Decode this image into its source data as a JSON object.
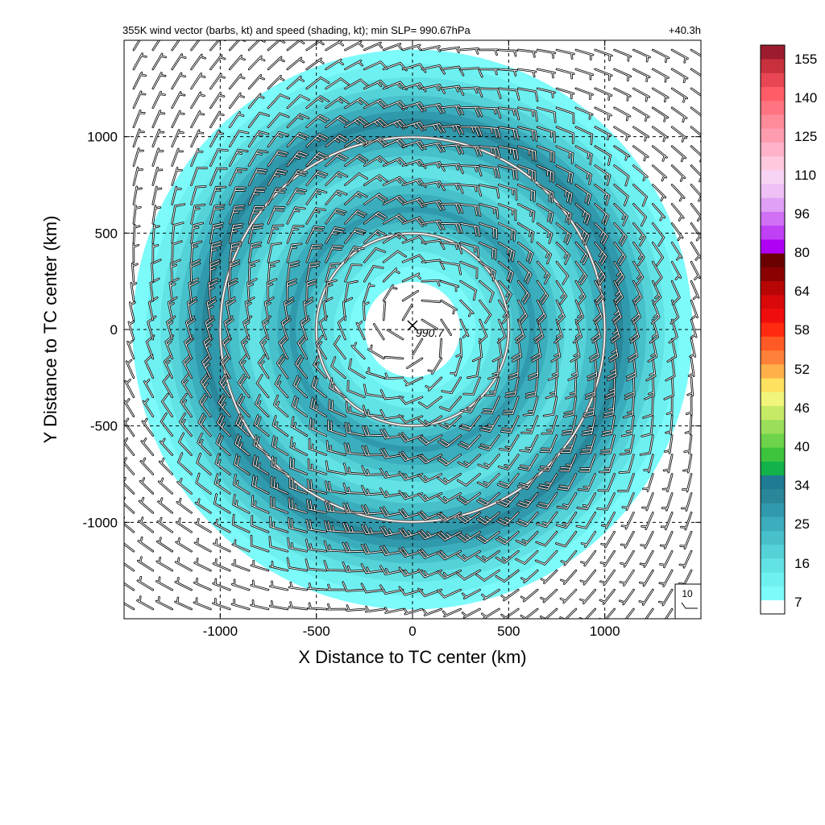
{
  "chart_data": {
    "type": "heatmap",
    "title": "355K wind vector (barbs, kt) and speed (shading, kt); min SLP= 990.67hPa",
    "forecast_time": "+40.3h",
    "xlabel": "X Distance to TC center (km)",
    "ylabel": "Y Distance to TC center (km)",
    "xlim": [
      -1500,
      1500
    ],
    "ylim": [
      -1500,
      1500
    ],
    "xticks": [
      -1000,
      -500,
      0,
      500,
      1000
    ],
    "yticks": [
      -1000,
      -500,
      0,
      500,
      1000
    ],
    "xtick_labels": [
      "-1000",
      "-500",
      "0",
      "500",
      "1000"
    ],
    "ytick_labels": [
      "-1000",
      "-500",
      "0",
      "500",
      "1000"
    ],
    "grid": "dashed",
    "center_marker": {
      "x": 0,
      "y": 0,
      "label": "990.7"
    },
    "range_rings_km": [
      500,
      1000
    ],
    "reference_vector": {
      "label": "10",
      "unit": "kt"
    },
    "colorbar": {
      "labels": [
        "155",
        "140",
        "125",
        "110",
        "96",
        "80",
        "64",
        "58",
        "52",
        "46",
        "40",
        "34",
        "25",
        "16",
        "7"
      ],
      "levels": [
        7,
        10,
        13,
        16,
        19,
        22,
        25,
        28,
        31,
        34,
        37,
        40,
        43,
        46,
        49,
        52,
        55,
        58,
        61,
        64,
        68,
        72,
        76,
        80,
        84,
        88,
        92,
        96,
        101,
        105,
        110,
        115,
        120,
        125,
        130,
        135,
        140,
        145,
        150,
        155,
        160
      ],
      "colors": [
        "#ffffff",
        "#7dfafa",
        "#6ff0f0",
        "#62e2e4",
        "#55d2d8",
        "#47c0ca",
        "#3badbc",
        "#3199ac",
        "#2a8699",
        "#1f7a93",
        "#12b34a",
        "#3cc43c",
        "#6cd34a",
        "#9ade5a",
        "#c6ea66",
        "#f1f57a",
        "#ffe160",
        "#ffb04a",
        "#ff8038",
        "#ff5a26",
        "#ff2a10",
        "#f00d0d",
        "#d90909",
        "#b80606",
        "#8b0000",
        "#6a0000",
        "#b000f5",
        "#c040f5",
        "#d070f5",
        "#e0a0f5",
        "#eec0f5",
        "#f7d4f3",
        "#ffc8de",
        "#ffb2c8",
        "#ff9caf",
        "#ff8a99",
        "#ff7480",
        "#ff5c68",
        "#e84654",
        "#c8303e",
        "#9c1c2e"
      ]
    },
    "wind_speed_field": {
      "units": "kt",
      "description_rings": [
        {
          "r_km": 0,
          "speed": 3
        },
        {
          "r_km": 200,
          "speed": 5
        },
        {
          "r_km": 330,
          "speed": 10
        },
        {
          "r_km": 480,
          "speed": 16
        },
        {
          "r_km": 620,
          "speed": 26
        },
        {
          "r_km": 720,
          "speed": 21
        },
        {
          "r_km": 820,
          "speed": 14
        },
        {
          "r_km": 950,
          "speed": 22
        },
        {
          "r_km": 1080,
          "speed": 29
        },
        {
          "r_km": 1200,
          "speed": 20
        },
        {
          "r_km": 1330,
          "speed": 12
        },
        {
          "r_km": 1480,
          "speed": 6
        }
      ]
    }
  }
}
